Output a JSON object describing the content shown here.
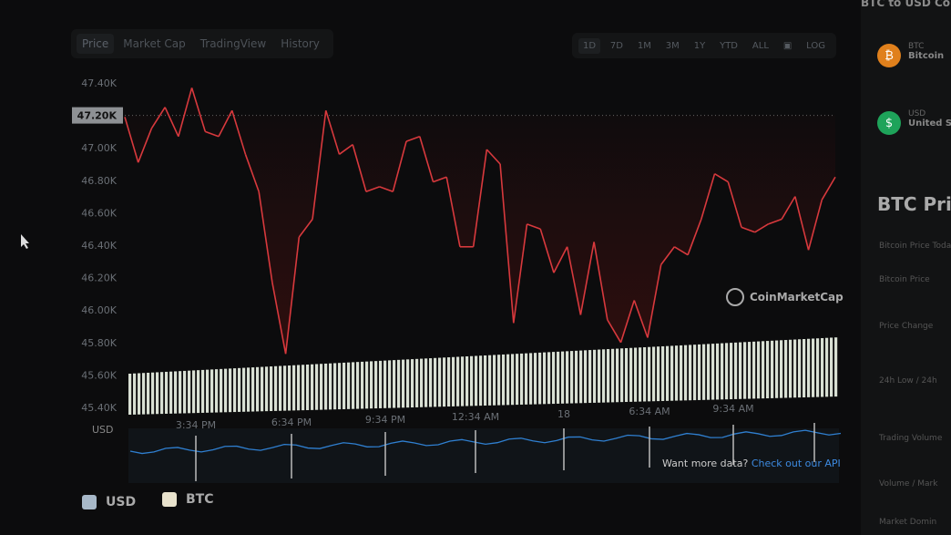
{
  "tabs": [
    {
      "label": "Price",
      "active": true
    },
    {
      "label": "Market Cap"
    },
    {
      "label": "TradingView"
    },
    {
      "label": "History"
    }
  ],
  "ranges": [
    {
      "label": "1D",
      "active": true
    },
    {
      "label": "7D"
    },
    {
      "label": "1M"
    },
    {
      "label": "3M"
    },
    {
      "label": "1Y"
    },
    {
      "label": "YTD"
    },
    {
      "label": "ALL"
    },
    {
      "label": "calendar-icon",
      "icon": true
    },
    {
      "label": "LOG"
    }
  ],
  "sidebar": {
    "header": "BTC to USD Co",
    "coins": [
      {
        "symbol": "BTC",
        "name": "Bitcoin",
        "color": "#e0801c",
        "glyph": "₿"
      },
      {
        "symbol": "USD",
        "name": "United St",
        "color": "#1ea35a",
        "glyph": "$"
      }
    ],
    "title": "BTC Price",
    "rows": [
      "Bitcoin Price Toda",
      "Bitcoin Price",
      "Price Change",
      "24h Low / 24h",
      "Trading Volume",
      "Volume / Mark",
      "Market Domin"
    ]
  },
  "watermark": "CoinMarketCap",
  "api": {
    "text": "Want more data?",
    "link": "Check out our API"
  },
  "legend": [
    {
      "label": "USD",
      "color": "#a7b8c8"
    },
    {
      "label": "BTC",
      "color": "#e8e2cc"
    }
  ],
  "chart_data": {
    "type": "line",
    "yticks": [
      "47.40K",
      "47.20K",
      "47.00K",
      "46.80K",
      "46.60K",
      "46.40K",
      "46.20K",
      "46.00K",
      "45.80K",
      "45.60K",
      "45.40K"
    ],
    "ylim": [
      45.4,
      47.4
    ],
    "current_price_label": "47.20K",
    "reference_price": 47.2,
    "xticks": [
      "3:34 PM",
      "6:34 PM",
      "9:34 PM",
      "12:34 AM",
      "18",
      "6:34 AM",
      "9:34 AM"
    ],
    "nav_label": "USD",
    "colors": {
      "up": "#3fcf7a",
      "down": "#d8393d",
      "volume": "#d9e0d4",
      "nav": "#2f7fd0"
    },
    "series": [
      {
        "values": [
          47.19,
          46.91,
          47.12,
          47.25,
          47.07,
          47.37,
          47.1,
          47.07,
          47.23,
          46.96,
          46.73,
          46.17,
          45.73,
          46.45,
          46.56,
          47.23,
          46.96,
          47.02,
          46.73,
          46.76,
          46.73,
          47.04,
          47.07,
          46.79,
          46.82,
          46.39,
          46.39,
          46.99,
          46.9,
          45.92,
          46.53,
          46.5,
          46.23,
          46.39,
          45.97,
          46.42,
          45.94,
          45.8,
          46.06,
          45.83,
          46.28,
          46.39,
          46.34,
          46.56,
          46.84,
          46.79,
          46.51,
          46.48,
          46.53,
          46.56,
          46.7,
          46.37,
          46.68,
          46.82
        ]
      }
    ]
  }
}
